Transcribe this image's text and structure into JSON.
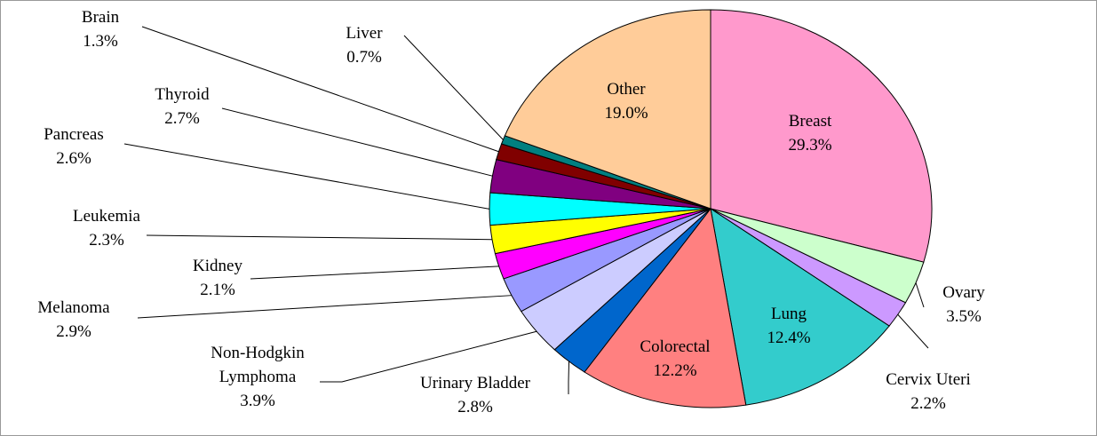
{
  "chart_data": {
    "type": "pie",
    "categories": [
      "Breast",
      "Ovary",
      "Cervix Uteri",
      "Lung",
      "Colorectal",
      "Urinary Bladder",
      "Non-Hodgkin Lymphoma",
      "Melanoma",
      "Kidney",
      "Leukemia",
      "Pancreas",
      "Thyroid",
      "Brain",
      "Liver",
      "Other"
    ],
    "values": [
      29.3,
      3.5,
      2.2,
      12.4,
      12.2,
      2.8,
      3.9,
      2.9,
      2.1,
      2.3,
      2.6,
      2.7,
      1.3,
      0.7,
      19.0
    ],
    "value_labels": [
      "29.3%",
      "3.5%",
      "2.2%",
      "12.4%",
      "12.2%",
      "2.8%",
      "3.9%",
      "2.9%",
      "2.1%",
      "2.3%",
      "2.6%",
      "2.7%",
      "1.3%",
      "0.7%",
      "19.0%"
    ],
    "colors": [
      "#ff99cc",
      "#ccffcc",
      "#cc99ff",
      "#33cccc",
      "#ff8080",
      "#0066cc",
      "#ccccff",
      "#9999ff",
      "#ff00ff",
      "#ffff00",
      "#00ffff",
      "#800080",
      "#800000",
      "#008080",
      "#ffcc99"
    ]
  }
}
